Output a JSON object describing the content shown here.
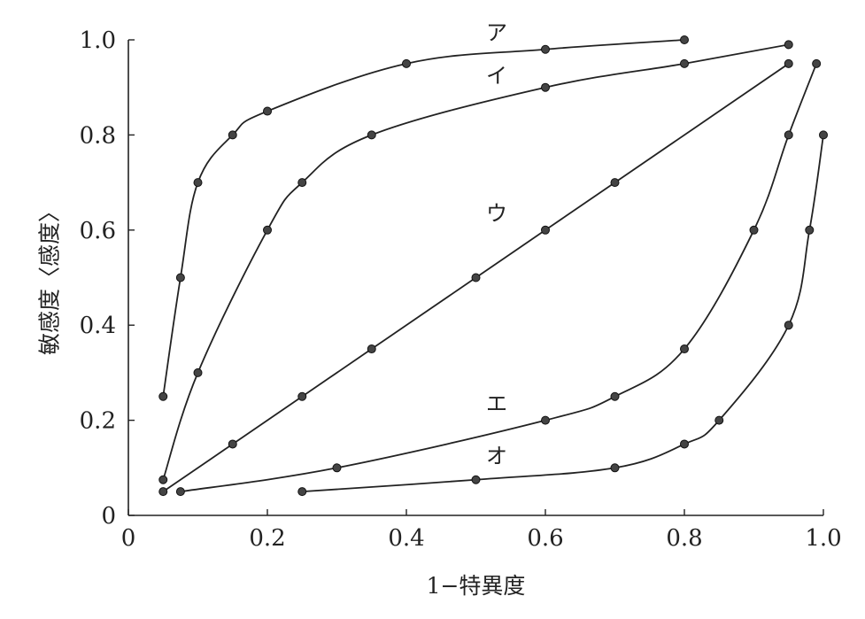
{
  "chart_data": {
    "type": "line",
    "xlabel": "1−特異度",
    "ylabel": "敏感度〈感度〉",
    "xlim": [
      0,
      1.0
    ],
    "ylim": [
      0,
      1.0
    ],
    "x_ticks": [
      "0",
      "0.2",
      "0.4",
      "0.6",
      "0.8",
      "1.0"
    ],
    "y_ticks": [
      "0",
      "0.2",
      "0.4",
      "0.6",
      "0.8",
      "1.0"
    ],
    "grid": false,
    "series": [
      {
        "name": "ア",
        "x": [
          0.05,
          0.075,
          0.1,
          0.15,
          0.2,
          0.4,
          0.6,
          0.8
        ],
        "y": [
          0.25,
          0.5,
          0.7,
          0.8,
          0.85,
          0.95,
          0.98,
          1.0
        ]
      },
      {
        "name": "イ",
        "x": [
          0.05,
          0.1,
          0.2,
          0.25,
          0.35,
          0.6,
          0.8,
          0.95
        ],
        "y": [
          0.075,
          0.3,
          0.6,
          0.7,
          0.8,
          0.9,
          0.95,
          0.99
        ]
      },
      {
        "name": "ウ",
        "x": [
          0.05,
          0.15,
          0.25,
          0.35,
          0.5,
          0.6,
          0.7,
          0.95
        ],
        "y": [
          0.05,
          0.15,
          0.25,
          0.35,
          0.5,
          0.6,
          0.7,
          0.95
        ]
      },
      {
        "name": "エ",
        "x": [
          0.075,
          0.3,
          0.6,
          0.7,
          0.8,
          0.9,
          0.95,
          0.99
        ],
        "y": [
          0.05,
          0.1,
          0.2,
          0.25,
          0.35,
          0.6,
          0.8,
          0.95
        ]
      },
      {
        "name": "オ",
        "x": [
          0.25,
          0.5,
          0.7,
          0.8,
          0.85,
          0.95,
          0.98,
          1.0
        ],
        "y": [
          0.05,
          0.075,
          0.1,
          0.15,
          0.2,
          0.4,
          0.6,
          0.8
        ]
      }
    ]
  }
}
